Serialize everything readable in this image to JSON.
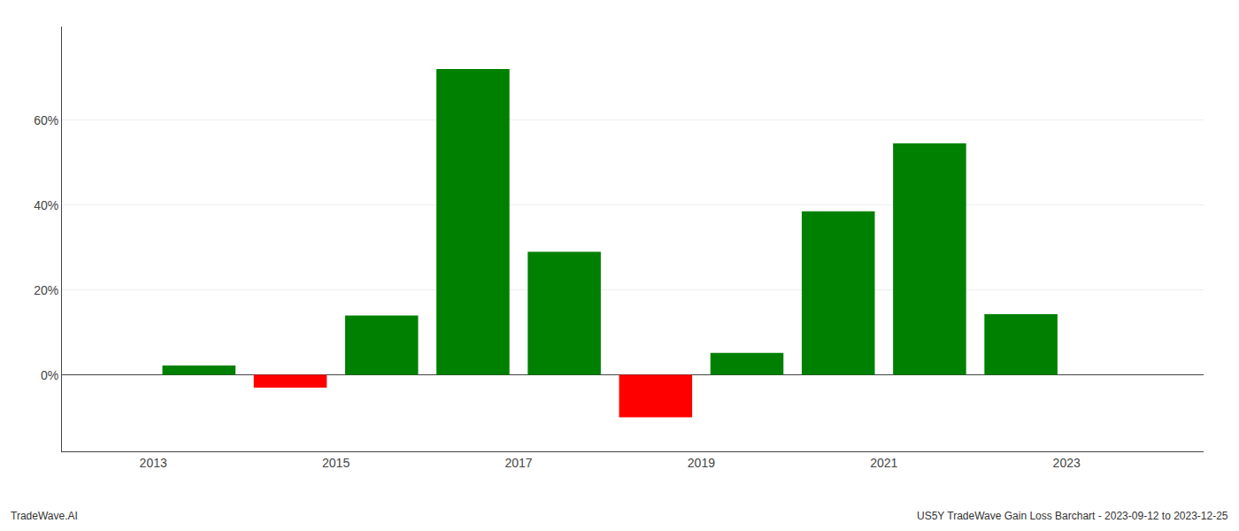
{
  "chart_data": {
    "type": "bar",
    "x": [
      2013.5,
      2014.5,
      2015.5,
      2016.5,
      2017.5,
      2018.5,
      2019.5,
      2020.5,
      2021.5,
      2022.5
    ],
    "values": [
      0.022,
      -0.03,
      0.14,
      0.72,
      0.29,
      -0.1,
      0.052,
      0.385,
      0.545,
      0.143
    ],
    "colors": [
      "#008000",
      "#ff0000",
      "#008000",
      "#008000",
      "#008000",
      "#ff0000",
      "#008000",
      "#008000",
      "#008000",
      "#008000"
    ],
    "xlim": [
      2012.0,
      2024.5
    ],
    "xticks": [
      2013,
      2015,
      2017,
      2019,
      2021,
      2023
    ],
    "ylim": [
      -0.18,
      0.82
    ],
    "yticks": [
      {
        "value": 0.0,
        "label": "0%"
      },
      {
        "value": 0.2,
        "label": "20%"
      },
      {
        "value": 0.4,
        "label": "40%"
      },
      {
        "value": 0.6,
        "label": "60%"
      }
    ],
    "grid": true,
    "annotations": [
      "TradeWave.AI",
      "US5Y TradeWave Gain Loss Barchart - 2023-09-12 to 2023-12-25"
    ]
  }
}
